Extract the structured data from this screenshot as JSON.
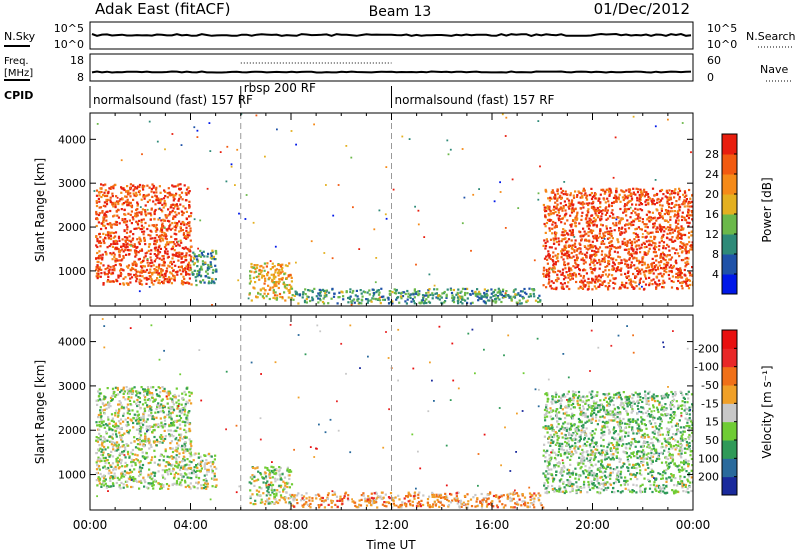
{
  "header": {
    "station": "Adak East (fitACF)",
    "beam": "Beam 13",
    "date": "01/Dec/2012"
  },
  "panels": {
    "nsky": {
      "label": "N.Sky",
      "left_ticks": [
        "10^5",
        "10^0"
      ],
      "right_ticks": [
        "10^5",
        "10^0"
      ],
      "right_label": "N.Search"
    },
    "freq": {
      "label_top": "Freq.",
      "label_bottom": "[MHz]",
      "left_ticks": [
        "18",
        "8"
      ],
      "right_ticks": [
        "60",
        "0"
      ],
      "right_label": "Nave"
    },
    "cpid": {
      "label": "CPID",
      "segments": [
        {
          "label": "normalsound (fast) 157 RF",
          "start_hour": 0,
          "end_hour": 6
        },
        {
          "label": "rbsp 200 RF",
          "start_hour": 6,
          "end_hour": 12
        },
        {
          "label": "normalsound (fast) 157 RF",
          "start_hour": 12,
          "end_hour": 24
        }
      ]
    }
  },
  "chart_data": [
    {
      "type": "heatmap",
      "name": "power",
      "ylabel": "Slant Range [km]",
      "y_ticks": [
        "1000",
        "2000",
        "3000",
        "4000"
      ],
      "ylim": [
        200,
        4600
      ],
      "colorbar_label": "Power [dB]",
      "colorbar_ticks": [
        "4",
        "8",
        "12",
        "16",
        "20",
        "24",
        "28"
      ],
      "colorbar_colors": [
        "#0018e8",
        "#1f52a8",
        "#2e8a78",
        "#6bb84a",
        "#e4b020",
        "#f58a18",
        "#f25a10",
        "#e81e0e"
      ],
      "regions": [
        {
          "x": [
            0.2,
            4.0
          ],
          "y": [
            700,
            3000
          ],
          "level": 0.85
        },
        {
          "x": [
            4.0,
            5.0
          ],
          "y": [
            700,
            1500
          ],
          "level": 0.35
        },
        {
          "x": [
            6.3,
            8.0
          ],
          "y": [
            350,
            1200
          ],
          "level": 0.6
        },
        {
          "x": [
            8.0,
            18.0
          ],
          "y": [
            280,
            620
          ],
          "level": 0.35
        },
        {
          "x": [
            18.0,
            24.0
          ],
          "y": [
            600,
            2900
          ],
          "level": 0.85
        }
      ]
    },
    {
      "type": "heatmap",
      "name": "velocity",
      "xlabel": "Time UT",
      "ylabel": "Slant Range [km]",
      "x_ticks": [
        "00:00",
        "04:00",
        "08:00",
        "12:00",
        "16:00",
        "20:00",
        "00:00"
      ],
      "y_ticks": [
        "1000",
        "2000",
        "3000",
        "4000"
      ],
      "ylim": [
        200,
        4600
      ],
      "colorbar_label": "Velocity [m s⁻¹]",
      "colorbar_ticks": [
        "200",
        "100",
        "50",
        "15",
        "-15",
        "-50",
        "-100",
        "-200"
      ],
      "colorbar_colors": [
        "#1a2a9c",
        "#2a6a9c",
        "#2f9a58",
        "#6fcc34",
        "#c8c8c8",
        "#f0a028",
        "#f07018",
        "#e82828",
        "#e81010"
      ],
      "regions": [
        {
          "x": [
            0.2,
            4.0
          ],
          "y": [
            700,
            3000
          ],
          "level": 0.45
        },
        {
          "x": [
            4.0,
            5.0
          ],
          "y": [
            700,
            1500
          ],
          "level": 0.45
        },
        {
          "x": [
            6.3,
            8.0
          ],
          "y": [
            350,
            1200
          ],
          "level": 0.45
        },
        {
          "x": [
            8.0,
            18.0
          ],
          "y": [
            280,
            620
          ],
          "level": 0.65
        },
        {
          "x": [
            18.0,
            24.0
          ],
          "y": [
            600,
            2900
          ],
          "level": 0.4
        }
      ]
    }
  ]
}
